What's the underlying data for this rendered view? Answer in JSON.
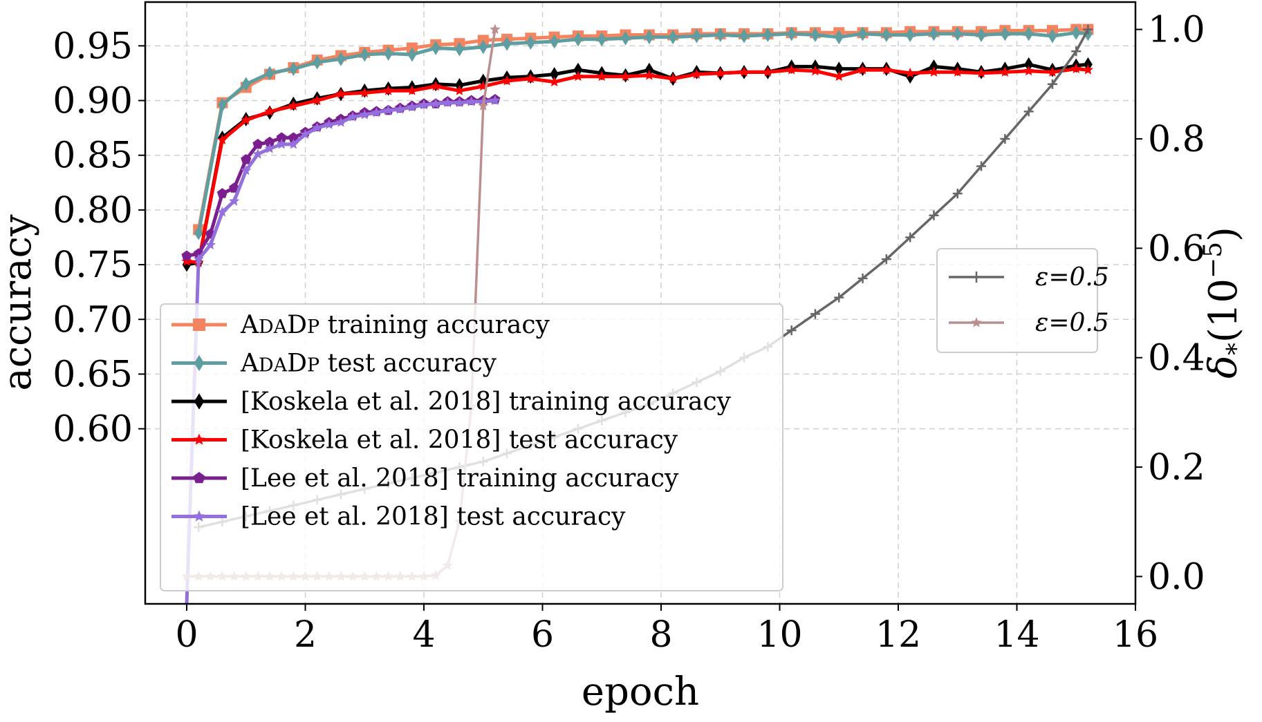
{
  "chart_data": {
    "type": "line",
    "xlabel": "epoch",
    "ylabel_left": "accuracy",
    "ylabel_right": "δ*(10^-5)",
    "ylabel_right_main": "δ",
    "ylabel_right_sub": "*",
    "ylabel_right_paren": "(10",
    "ylabel_right_exp": "−5",
    "ylabel_right_close": ")",
    "xlim": [
      -0.7,
      16
    ],
    "ylim_left": [
      0.44,
      0.99
    ],
    "ylim_right": [
      -0.05,
      1.05
    ],
    "xticks": [
      "0",
      "2",
      "4",
      "6",
      "8",
      "10",
      "12",
      "14",
      "16"
    ],
    "xtick_values": [
      0,
      2,
      4,
      6,
      8,
      10,
      12,
      14,
      16
    ],
    "yticks_left": [
      "0.60",
      "0.65",
      "0.70",
      "0.75",
      "0.80",
      "0.85",
      "0.90",
      "0.95"
    ],
    "ytick_values_left": [
      0.6,
      0.65,
      0.7,
      0.75,
      0.8,
      0.85,
      0.9,
      0.95
    ],
    "yticks_right": [
      "0.0",
      "0.2",
      "0.4",
      "0.6",
      "0.8",
      "1.0"
    ],
    "ytick_values_right": [
      0.0,
      0.2,
      0.4,
      0.6,
      0.8,
      1.0
    ],
    "grid": true,
    "legend_left_position": "lower-left",
    "legend_right_position": "center-right",
    "series": [
      {
        "name": "ADADP training accuracy",
        "legend_prefix": "A",
        "legend_smallcaps_1": "DA",
        "legend_mid": "D",
        "legend_smallcaps_2": "P",
        "legend_suffix": " training accuracy",
        "axis": "left",
        "color": "#f4845f",
        "marker": "square",
        "x": [
          0.2,
          0.6,
          1.0,
          1.4,
          1.8,
          2.2,
          2.6,
          3.0,
          3.4,
          3.8,
          4.2,
          4.6,
          5.0,
          5.4,
          5.8,
          6.2,
          6.6,
          7.0,
          7.4,
          7.8,
          8.2,
          8.6,
          9.0,
          9.4,
          9.8,
          10.2,
          10.6,
          11.0,
          11.4,
          11.8,
          12.2,
          12.6,
          13.0,
          13.4,
          13.8,
          14.2,
          14.6,
          15.0,
          15.2
        ],
        "y": [
          0.782,
          0.898,
          0.912,
          0.924,
          0.93,
          0.937,
          0.941,
          0.944,
          0.946,
          0.948,
          0.951,
          0.952,
          0.955,
          0.956,
          0.957,
          0.958,
          0.959,
          0.959,
          0.96,
          0.96,
          0.96,
          0.961,
          0.961,
          0.961,
          0.961,
          0.962,
          0.962,
          0.962,
          0.962,
          0.962,
          0.963,
          0.963,
          0.963,
          0.963,
          0.964,
          0.964,
          0.964,
          0.965,
          0.965
        ]
      },
      {
        "name": "ADADP test accuracy",
        "legend_prefix": "A",
        "legend_smallcaps_1": "DA",
        "legend_mid": "D",
        "legend_smallcaps_2": "P",
        "legend_suffix": " test accuracy",
        "axis": "left",
        "color": "#5f9ea0",
        "marker": "diamond",
        "x": [
          0.2,
          0.6,
          1.0,
          1.4,
          1.8,
          2.2,
          2.6,
          3.0,
          3.4,
          3.8,
          4.2,
          4.6,
          5.0,
          5.4,
          5.8,
          6.2,
          6.6,
          7.0,
          7.4,
          7.8,
          8.2,
          8.6,
          9.0,
          9.4,
          9.8,
          10.2,
          10.6,
          11.0,
          11.4,
          11.8,
          12.2,
          12.6,
          13.0,
          13.4,
          13.8,
          14.2,
          14.6,
          15.0,
          15.2
        ],
        "y": [
          0.779,
          0.896,
          0.915,
          0.925,
          0.929,
          0.935,
          0.938,
          0.942,
          0.943,
          0.942,
          0.948,
          0.947,
          0.949,
          0.952,
          0.953,
          0.954,
          0.956,
          0.956,
          0.957,
          0.958,
          0.958,
          0.959,
          0.96,
          0.959,
          0.96,
          0.961,
          0.96,
          0.958,
          0.961,
          0.96,
          0.96,
          0.961,
          0.961,
          0.96,
          0.961,
          0.961,
          0.959,
          0.962,
          0.961
        ]
      },
      {
        "name": "[Koskela et al. 2018] training accuracy",
        "axis": "left",
        "color": "#000000",
        "marker": "diamond",
        "x": [
          0.0,
          0.2,
          0.6,
          1.0,
          1.4,
          1.8,
          2.2,
          2.6,
          3.0,
          3.4,
          3.8,
          4.2,
          4.6,
          5.0,
          5.4,
          5.8,
          6.2,
          6.6,
          7.0,
          7.4,
          7.8,
          8.2,
          8.6,
          9.0,
          9.4,
          9.8,
          10.2,
          10.6,
          11.0,
          11.4,
          11.8,
          12.2,
          12.6,
          13.0,
          13.4,
          13.8,
          14.2,
          14.6,
          15.0,
          15.2
        ],
        "y": [
          0.75,
          0.752,
          0.866,
          0.883,
          0.889,
          0.897,
          0.902,
          0.906,
          0.909,
          0.911,
          0.912,
          0.915,
          0.914,
          0.918,
          0.921,
          0.922,
          0.924,
          0.928,
          0.925,
          0.923,
          0.928,
          0.92,
          0.926,
          0.925,
          0.926,
          0.926,
          0.931,
          0.931,
          0.929,
          0.929,
          0.929,
          0.922,
          0.931,
          0.929,
          0.926,
          0.929,
          0.933,
          0.928,
          0.932,
          0.933
        ]
      },
      {
        "name": "[Koskela et al. 2018] test accuracy",
        "axis": "left",
        "color": "#ff0000",
        "marker": "star",
        "x": [
          0.0,
          0.2,
          0.6,
          1.0,
          1.4,
          1.8,
          2.2,
          2.6,
          3.0,
          3.4,
          3.8,
          4.2,
          4.6,
          5.0,
          5.4,
          5.8,
          6.2,
          6.6,
          7.0,
          7.4,
          7.8,
          8.2,
          8.6,
          9.0,
          9.4,
          9.8,
          10.2,
          10.6,
          11.0,
          11.4,
          11.8,
          12.2,
          12.6,
          13.0,
          13.4,
          13.8,
          14.2,
          14.6,
          15.0,
          15.2
        ],
        "y": [
          0.753,
          0.752,
          0.864,
          0.882,
          0.89,
          0.895,
          0.9,
          0.906,
          0.907,
          0.909,
          0.909,
          0.913,
          0.909,
          0.913,
          0.918,
          0.92,
          0.917,
          0.922,
          0.922,
          0.922,
          0.923,
          0.92,
          0.924,
          0.925,
          0.926,
          0.926,
          0.928,
          0.927,
          0.922,
          0.928,
          0.928,
          0.925,
          0.926,
          0.926,
          0.925,
          0.926,
          0.927,
          0.926,
          0.929,
          0.928
        ]
      },
      {
        "name": "[Lee et al. 2018] training accuracy",
        "axis": "left",
        "color": "#7b1e8e",
        "marker": "pentagon",
        "x": [
          0.0,
          0.2,
          0.4,
          0.6,
          0.8,
          1.0,
          1.2,
          1.4,
          1.6,
          1.8,
          2.0,
          2.2,
          2.4,
          2.6,
          2.8,
          3.0,
          3.2,
          3.4,
          3.6,
          3.8,
          4.0,
          4.2,
          4.4,
          4.6,
          4.8,
          5.0,
          5.2
        ],
        "y": [
          0.758,
          0.76,
          0.778,
          0.815,
          0.82,
          0.846,
          0.86,
          0.862,
          0.866,
          0.866,
          0.871,
          0.876,
          0.88,
          0.883,
          0.886,
          0.889,
          0.89,
          0.891,
          0.893,
          0.895,
          0.897,
          0.897,
          0.899,
          0.899,
          0.9,
          0.9,
          0.901
        ]
      },
      {
        "name": "[Lee et al. 2018] test accuracy",
        "axis": "left",
        "color": "#9370db",
        "marker": "star",
        "x": [
          0.0,
          0.2,
          0.4,
          0.6,
          0.8,
          1.0,
          1.2,
          1.4,
          1.6,
          1.8,
          2.0,
          2.2,
          2.4,
          2.6,
          2.8,
          3.0,
          3.2,
          3.4,
          3.6,
          3.8,
          4.0,
          4.2,
          4.4,
          4.6,
          4.8,
          5.0,
          5.2
        ],
        "y": [
          0.432,
          0.755,
          0.768,
          0.798,
          0.808,
          0.836,
          0.851,
          0.856,
          0.86,
          0.86,
          0.869,
          0.875,
          0.878,
          0.88,
          0.885,
          0.887,
          0.889,
          0.891,
          0.892,
          0.894,
          0.896,
          0.897,
          0.898,
          0.898,
          0.899,
          0.899,
          0.9
        ]
      },
      {
        "name": "ε=0.5",
        "axis": "right",
        "color": "#666666",
        "marker": "plus",
        "x": [
          0.2,
          0.6,
          1.0,
          1.4,
          1.8,
          2.2,
          2.6,
          3.0,
          3.4,
          3.8,
          4.2,
          4.6,
          5.0,
          5.4,
          5.8,
          6.2,
          6.6,
          7.0,
          7.4,
          7.8,
          8.2,
          8.6,
          9.0,
          9.4,
          9.8,
          10.2,
          10.6,
          11.0,
          11.4,
          11.8,
          12.2,
          12.6,
          13.0,
          13.4,
          13.8,
          14.2,
          14.6,
          15.0,
          15.2
        ],
        "y": [
          0.09,
          0.1,
          0.11,
          0.12,
          0.13,
          0.14,
          0.15,
          0.16,
          0.17,
          0.18,
          0.19,
          0.2,
          0.21,
          0.225,
          0.24,
          0.255,
          0.27,
          0.285,
          0.3,
          0.315,
          0.335,
          0.355,
          0.375,
          0.4,
          0.42,
          0.45,
          0.48,
          0.51,
          0.545,
          0.58,
          0.62,
          0.66,
          0.7,
          0.75,
          0.8,
          0.85,
          0.9,
          0.96,
          1.0
        ]
      },
      {
        "name": "ε=0.5",
        "axis": "right",
        "color": "#bc8f8f",
        "marker": "star",
        "x": [
          0.0,
          0.2,
          0.4,
          0.6,
          0.8,
          1.0,
          1.2,
          1.4,
          1.6,
          1.8,
          2.0,
          2.2,
          2.4,
          2.6,
          2.8,
          3.0,
          3.2,
          3.4,
          3.6,
          3.8,
          4.0,
          4.2,
          4.4,
          4.6,
          4.8,
          5.0,
          5.2
        ],
        "y": [
          0.0,
          0.0,
          0.0,
          0.0,
          0.0,
          0.0,
          0.0,
          0.0,
          0.0,
          0.0,
          0.0,
          0.0,
          0.0,
          0.0,
          0.0,
          0.0,
          0.0,
          0.0,
          0.0,
          0.0,
          0.0,
          0.002,
          0.02,
          0.1,
          0.31,
          0.86,
          1.0
        ]
      }
    ]
  }
}
